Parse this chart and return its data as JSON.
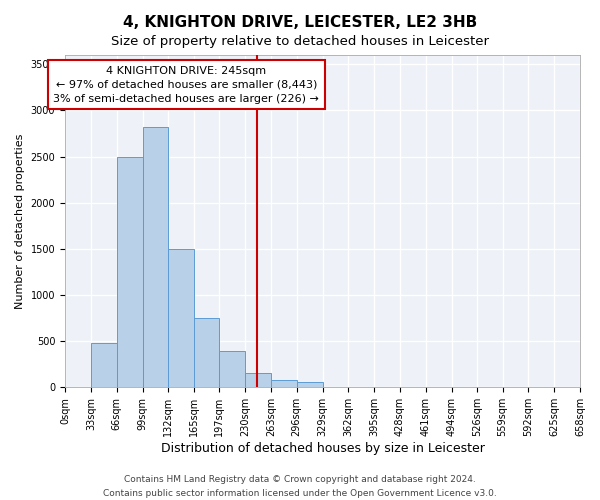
{
  "title": "4, KNIGHTON DRIVE, LEICESTER, LE2 3HB",
  "subtitle": "Size of property relative to detached houses in Leicester",
  "xlabel": "Distribution of detached houses by size in Leicester",
  "ylabel": "Number of detached properties",
  "bar_edges": [
    0,
    33,
    66,
    99,
    132,
    165,
    197,
    230,
    263,
    296,
    329,
    362,
    395,
    428,
    461,
    494,
    526,
    559,
    592,
    625,
    658
  ],
  "bar_heights": [
    0,
    480,
    2500,
    2820,
    1500,
    750,
    390,
    155,
    80,
    60,
    0,
    0,
    0,
    0,
    0,
    0,
    0,
    0,
    0,
    0
  ],
  "bar_color": "#b8d0e8",
  "bar_edge_color": "#5b9bd5",
  "property_line_x": 245,
  "property_line_color": "#cc0000",
  "annotation_line1": "4 KNIGHTON DRIVE: 245sqm",
  "annotation_line2": "← 97% of detached houses are smaller (8,443)",
  "annotation_line3": "3% of semi-detached houses are larger (226) →",
  "ylim": [
    0,
    3600
  ],
  "xlim": [
    0,
    658
  ],
  "xtick_labels": [
    "0sqm",
    "33sqm",
    "66sqm",
    "99sqm",
    "132sqm",
    "165sqm",
    "197sqm",
    "230sqm",
    "263sqm",
    "296sqm",
    "329sqm",
    "362sqm",
    "395sqm",
    "428sqm",
    "461sqm",
    "494sqm",
    "526sqm",
    "559sqm",
    "592sqm",
    "625sqm",
    "658sqm"
  ],
  "xtick_positions": [
    0,
    33,
    66,
    99,
    132,
    165,
    197,
    230,
    263,
    296,
    329,
    362,
    395,
    428,
    461,
    494,
    526,
    559,
    592,
    625,
    658
  ],
  "ytick_positions": [
    0,
    500,
    1000,
    1500,
    2000,
    2500,
    3000,
    3500
  ],
  "footer_line1": "Contains HM Land Registry data © Crown copyright and database right 2024.",
  "footer_line2": "Contains public sector information licensed under the Open Government Licence v3.0.",
  "title_fontsize": 11,
  "subtitle_fontsize": 9.5,
  "xlabel_fontsize": 9,
  "ylabel_fontsize": 8,
  "tick_fontsize": 7,
  "annotation_fontsize": 8,
  "footer_fontsize": 6.5
}
